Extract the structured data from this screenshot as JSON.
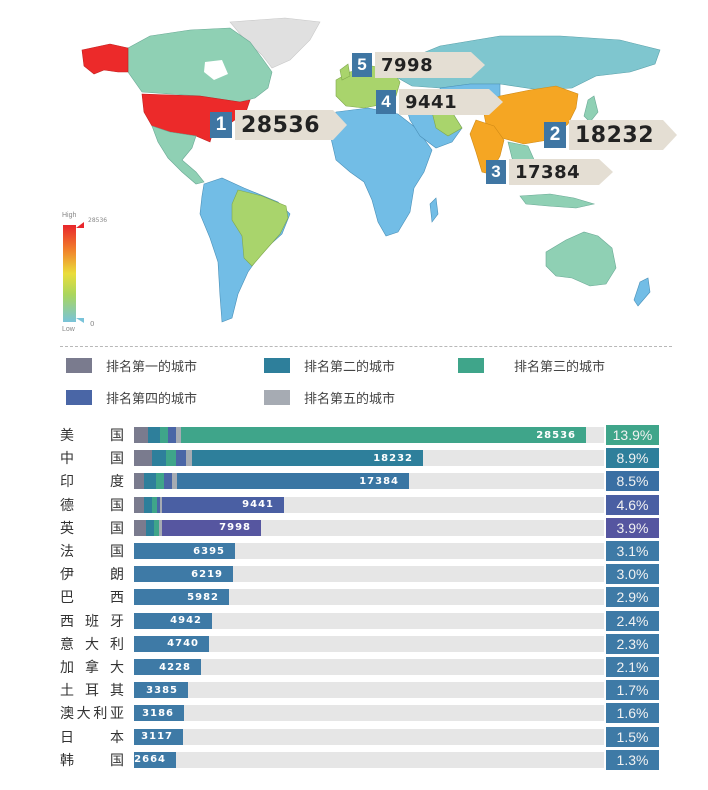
{
  "map": {
    "callouts": [
      {
        "rank": "1",
        "value": "28536",
        "country": "美国"
      },
      {
        "rank": "2",
        "value": "18232",
        "country": "中国"
      },
      {
        "rank": "3",
        "value": "17384",
        "country": "印度"
      },
      {
        "rank": "4",
        "value": "9441",
        "country": "德国"
      },
      {
        "rank": "5",
        "value": "7998",
        "country": "英国"
      }
    ],
    "scale": {
      "high_label": "High",
      "low_label": "Low",
      "max_value": "28536",
      "min_value": "0"
    },
    "colors": {
      "usa": "#ec2a2a",
      "china_india": "#f5a623",
      "high_green": "#a9d46c",
      "mid_teal": "#8fd0b4",
      "low_blue": "#72bde6",
      "russia": "#7fc6cf",
      "no_data": "#e0e0e0"
    }
  },
  "legend": {
    "items": [
      {
        "label": "排名第一的城市",
        "color": "#7a7b8e"
      },
      {
        "label": "排名第二的城市",
        "color": "#2e7f9b"
      },
      {
        "label": "排名第三的城市",
        "color": "#3fa58a"
      },
      {
        "label": "排名第四的城市",
        "color": "#4a66a6"
      },
      {
        "label": "排名第五的城市",
        "color": "#a6abb3"
      }
    ]
  },
  "chart_data": {
    "type": "bar",
    "title": "",
    "orientation": "horizontal",
    "categories": [
      "美国",
      "中国",
      "印度",
      "德国",
      "英国",
      "法国",
      "伊朗",
      "巴西",
      "西班牙",
      "意大利",
      "加拿大",
      "土耳其",
      "澳大利亚",
      "日本",
      "韩国"
    ],
    "values": [
      28536,
      18232,
      17384,
      9441,
      7998,
      6395,
      6219,
      5982,
      4942,
      4740,
      4228,
      3385,
      3186,
      3117,
      2664
    ],
    "shares_percent": [
      "13.9%",
      "8.9%",
      "8.5%",
      "4.6%",
      "3.9%",
      "3.1%",
      "3.0%",
      "2.9%",
      "2.4%",
      "2.3%",
      "2.1%",
      "1.7%",
      "1.6%",
      "1.5%",
      "1.3%"
    ],
    "legend": [
      "排名第一的城市",
      "排名第二的城市",
      "排名第三的城市",
      "排名第四的城市",
      "排名第五的城市"
    ],
    "xlim": [
      0,
      30000
    ],
    "grid": false
  },
  "rows": [
    {
      "name": [
        "美",
        "国"
      ],
      "value": "28536",
      "pct": "13.9%",
      "bar_color": "#3fa58a",
      "pct_color": "#3fa58a"
    },
    {
      "name": [
        "中",
        "国"
      ],
      "value": "18232",
      "pct": "8.9%",
      "bar_color": "#2e7f9b",
      "pct_color": "#2e7f9b"
    },
    {
      "name": [
        "印",
        "度"
      ],
      "value": "17384",
      "pct": "8.5%",
      "bar_color": "#3a76a3",
      "pct_color": "#3a6fa3"
    },
    {
      "name": [
        "德",
        "国"
      ],
      "value": "9441",
      "pct": "4.6%",
      "bar_color": "#4a5fa3",
      "pct_color": "#4a5fa3"
    },
    {
      "name": [
        "英",
        "国"
      ],
      "value": "7998",
      "pct": "3.9%",
      "bar_color": "#5656a0",
      "pct_color": "#5555a0"
    },
    {
      "name": [
        "法",
        "国"
      ],
      "value": "6395",
      "pct": "3.1%",
      "bar_color": "#3e7aa6",
      "pct_color": "#3e7aa6"
    },
    {
      "name": [
        "伊",
        "朗"
      ],
      "value": "6219",
      "pct": "3.0%",
      "bar_color": "#3e7aa6",
      "pct_color": "#3e7aa6"
    },
    {
      "name": [
        "巴",
        "西"
      ],
      "value": "5982",
      "pct": "2.9%",
      "bar_color": "#3e7aa6",
      "pct_color": "#3e7aa6"
    },
    {
      "name": [
        "西",
        "班",
        "牙"
      ],
      "value": "4942",
      "pct": "2.4%",
      "bar_color": "#3e7aa6",
      "pct_color": "#3e7aa6"
    },
    {
      "name": [
        "意",
        "大",
        "利"
      ],
      "value": "4740",
      "pct": "2.3%",
      "bar_color": "#3e7aa6",
      "pct_color": "#3e7aa6"
    },
    {
      "name": [
        "加",
        "拿",
        "大"
      ],
      "value": "4228",
      "pct": "2.1%",
      "bar_color": "#3e7aa6",
      "pct_color": "#3e7aa6"
    },
    {
      "name": [
        "土",
        "耳",
        "其"
      ],
      "value": "3385",
      "pct": "1.7%",
      "bar_color": "#3e7aa6",
      "pct_color": "#3e7aa6"
    },
    {
      "name": [
        "澳",
        "大",
        "利",
        "亚"
      ],
      "value": "3186",
      "pct": "1.6%",
      "bar_color": "#3e7aa6",
      "pct_color": "#3e7aa6"
    },
    {
      "name": [
        "日",
        "本"
      ],
      "value": "3117",
      "pct": "1.5%",
      "bar_color": "#3e7aa6",
      "pct_color": "#3e7aa6"
    },
    {
      "name": [
        "韩",
        "国"
      ],
      "value": "2664",
      "pct": "1.3%",
      "bar_color": "#3e7aa6",
      "pct_color": "#3e7aa6"
    }
  ]
}
